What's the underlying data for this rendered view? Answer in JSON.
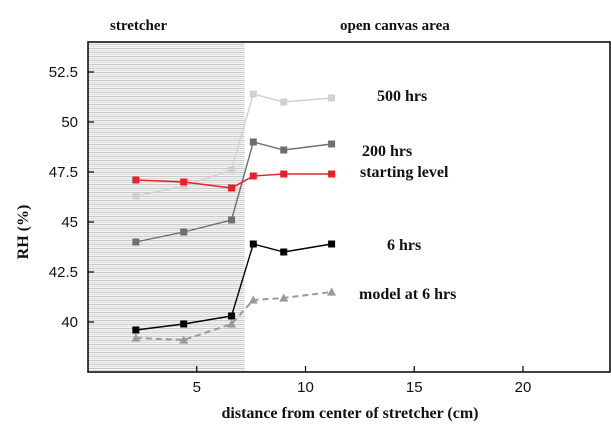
{
  "chart_data": {
    "type": "line",
    "title": "",
    "xlabel": "distance  from  center  of  stretcher  (cm)",
    "ylabel": "RH  (%)",
    "xlim": [
      0,
      24
    ],
    "ylim": [
      37.5,
      54
    ],
    "xticks": [
      5,
      10,
      15,
      20
    ],
    "yticks": [
      40,
      42.5,
      45,
      47.5,
      50,
      52.5
    ],
    "xtick_labels": [
      "5",
      "10",
      "15",
      "20"
    ],
    "ytick_labels": [
      "40",
      "42.5",
      "45",
      "47.5",
      "50",
      "52.5"
    ],
    "regions": [
      {
        "label": "stretcher",
        "x_from": 0,
        "x_to": 7.2,
        "shaded": true
      },
      {
        "label": "open canvas area",
        "x_from": 7.2,
        "x_to": 24,
        "shaded": false
      }
    ],
    "series": [
      {
        "name": "500 hrs",
        "color": "#d0d0d0",
        "marker": "square",
        "dash": "solid",
        "x": [
          2.2,
          4.4,
          6.6,
          7.6,
          9,
          11.2
        ],
        "y": [
          46.3,
          46.8,
          47.6,
          51.4,
          51,
          51.2
        ]
      },
      {
        "name": "200 hrs",
        "color": "#6e6e6e",
        "marker": "square",
        "dash": "solid",
        "x": [
          2.2,
          4.4,
          6.6,
          7.6,
          9,
          11.2
        ],
        "y": [
          44,
          44.5,
          45.1,
          49,
          48.6,
          48.9
        ]
      },
      {
        "name": "starting level",
        "color": "#e8202a",
        "marker": "square",
        "dash": "solid",
        "x": [
          2.2,
          4.4,
          6.6,
          7.6,
          9,
          11.2
        ],
        "y": [
          47.1,
          47,
          46.7,
          47.3,
          47.4,
          47.4
        ]
      },
      {
        "name": "6 hrs",
        "color": "#000000",
        "marker": "square",
        "dash": "solid",
        "x": [
          2.2,
          4.4,
          6.6,
          7.6,
          9,
          11.2
        ],
        "y": [
          39.6,
          39.9,
          40.3,
          43.9,
          43.5,
          43.9
        ]
      },
      {
        "name": "model  at  6 hrs",
        "color": "#9a9a9a",
        "marker": "triangle",
        "dash": "dashed",
        "x": [
          2.2,
          4.4,
          6.6,
          7.6,
          9,
          11.2
        ],
        "y": [
          39.2,
          39.1,
          39.9,
          41.1,
          41.2,
          41.5
        ]
      }
    ],
    "annotations": [
      "500 hrs",
      "200 hrs",
      "starting level",
      "6 hrs",
      "model  at  6 hrs"
    ],
    "grid": false,
    "legend": "none"
  }
}
